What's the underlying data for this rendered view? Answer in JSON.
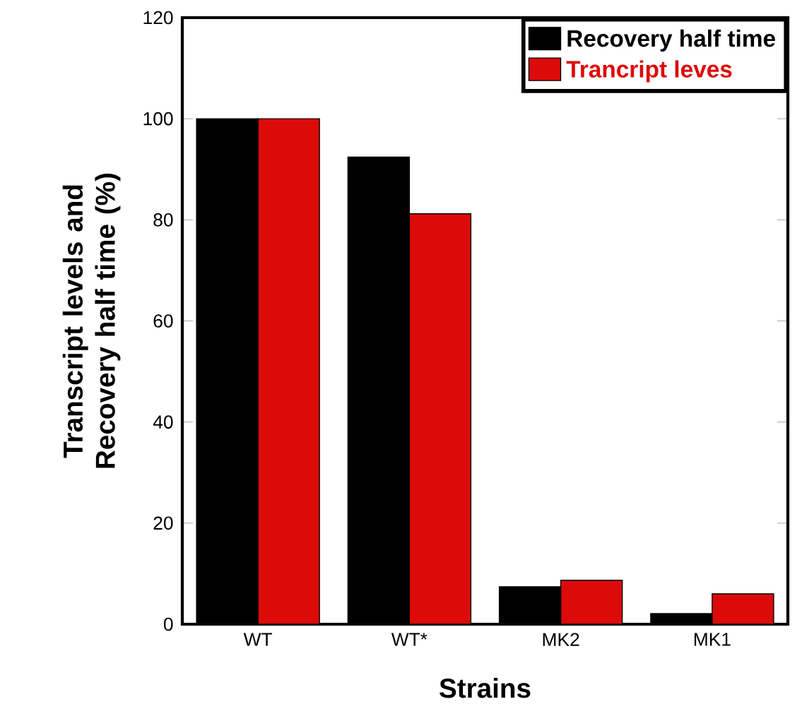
{
  "chart_data": {
    "type": "bar",
    "categories": [
      "WT",
      "WT*",
      "MK2",
      "MK1"
    ],
    "series": [
      {
        "name": "Recovery half time",
        "color": "#000000",
        "values": [
          100,
          92.4,
          7.4,
          2.1
        ]
      },
      {
        "name": "Trancript leves",
        "color": "#dd0a0a",
        "values": [
          100,
          81.2,
          8.7,
          6.0
        ]
      }
    ],
    "xlabel": "Strains",
    "ylabel": "Transcript levels and Recovery half time (%)",
    "ylim": [
      0,
      120
    ],
    "yticks": [
      0,
      20,
      40,
      60,
      80,
      100,
      120
    ],
    "grid": false,
    "legend": "top right"
  }
}
